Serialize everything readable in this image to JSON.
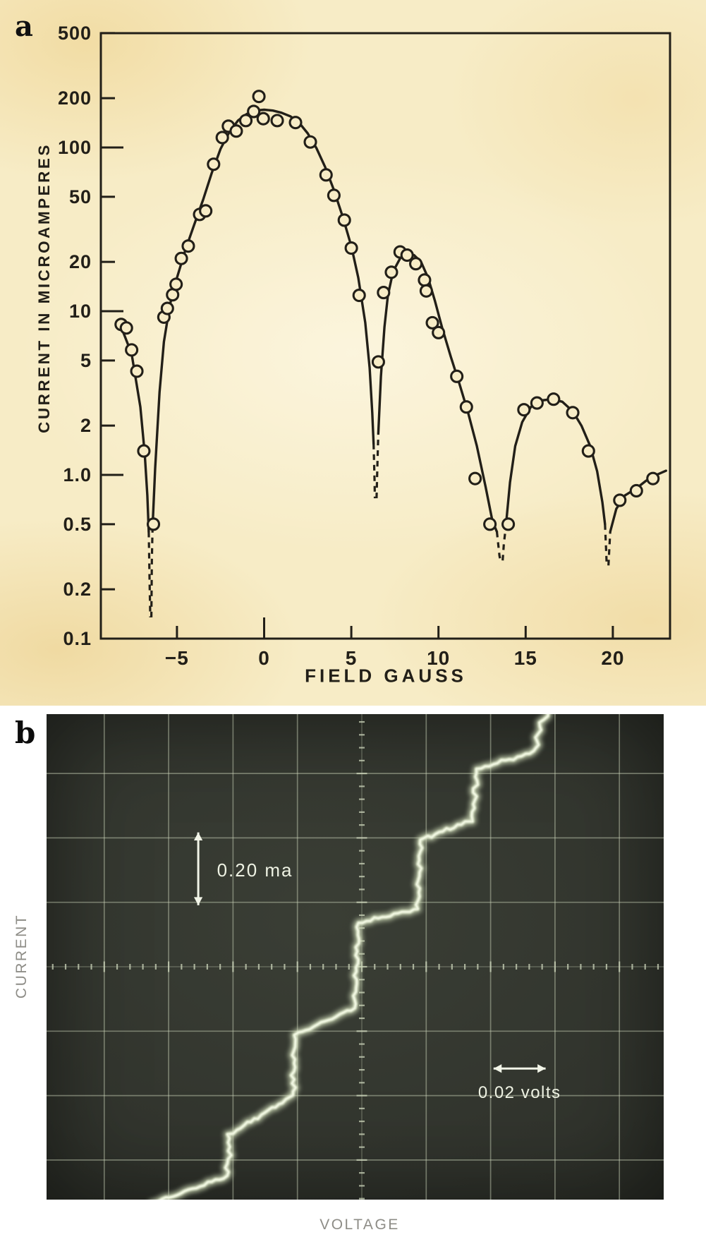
{
  "figure": {
    "panel_a_letter": "a",
    "panel_b_letter": "b"
  },
  "panel_a": {
    "y_axis_label": "CURRENT IN MICROAMPERES",
    "x_axis_label": "FIELD GAUSS",
    "y_tick_labels": [
      "500",
      "200",
      "100",
      "50",
      "20",
      "10",
      "5",
      "2",
      "1.0",
      "0.5",
      "0.2",
      "0.1"
    ],
    "x_tick_labels": [
      "−5",
      "0",
      "5",
      "10",
      "15",
      "20"
    ],
    "ink_color": "#221f18",
    "paper_color": "#f7ecc6"
  },
  "panel_b": {
    "y_axis_label": "CURRENT",
    "x_axis_label": "VOLTAGE",
    "current_scale_label": "0.20 ma",
    "voltage_scale_label": "0.02 volts",
    "screen_color": "#31342d",
    "grid_color": "#cdd6bb",
    "trace_color": "#eef4df",
    "annotation_color": "#eef2e3"
  },
  "chart_data": [
    {
      "type": "scatter",
      "panel": "a",
      "xlabel": "FIELD GAUSS",
      "ylabel": "CURRENT IN MICROAMPERES",
      "y_scale": "log",
      "xlim": [
        -9.35,
        23.35
      ],
      "ylim": [
        0.1,
        500
      ],
      "x_ticks": [
        -5,
        0,
        5,
        10,
        15,
        20
      ],
      "y_ticks": [
        500,
        200,
        100,
        50,
        20,
        10,
        5,
        2,
        1.0,
        0.5,
        0.2,
        0.1
      ],
      "grid": false,
      "points": [
        [
          -8.2,
          8.3
        ],
        [
          -7.9,
          7.9
        ],
        [
          -7.6,
          5.8
        ],
        [
          -7.3,
          4.3
        ],
        [
          -6.9,
          1.4
        ],
        [
          -6.35,
          0.5
        ],
        [
          -5.75,
          9.2
        ],
        [
          -5.55,
          10.4
        ],
        [
          -5.25,
          12.6
        ],
        [
          -5.05,
          14.6
        ],
        [
          -4.75,
          21
        ],
        [
          -4.35,
          25
        ],
        [
          -3.7,
          39
        ],
        [
          -3.35,
          41
        ],
        [
          -2.9,
          79
        ],
        [
          -2.4,
          115
        ],
        [
          -2.05,
          135
        ],
        [
          -1.6,
          126
        ],
        [
          -1.05,
          146
        ],
        [
          -0.6,
          166
        ],
        [
          -0.3,
          205
        ],
        [
          -0.05,
          150
        ],
        [
          0.75,
          146
        ],
        [
          1.8,
          142
        ],
        [
          2.65,
          108
        ],
        [
          3.55,
          68
        ],
        [
          4.0,
          51
        ],
        [
          4.6,
          36
        ],
        [
          5.0,
          24.3
        ],
        [
          5.45,
          12.5
        ],
        [
          6.55,
          4.9
        ],
        [
          6.85,
          13
        ],
        [
          7.3,
          17.3
        ],
        [
          7.8,
          23
        ],
        [
          8.2,
          22
        ],
        [
          8.7,
          19.5
        ],
        [
          9.2,
          15.5
        ],
        [
          9.3,
          13.3
        ],
        [
          9.65,
          8.5
        ],
        [
          10.0,
          7.4
        ],
        [
          11.05,
          4.0
        ],
        [
          11.6,
          2.6
        ],
        [
          12.1,
          0.95
        ],
        [
          12.95,
          0.5
        ],
        [
          14.0,
          0.5
        ],
        [
          14.9,
          2.5
        ],
        [
          15.65,
          2.75
        ],
        [
          16.6,
          2.9
        ],
        [
          17.7,
          2.4
        ],
        [
          18.6,
          1.4
        ],
        [
          20.4,
          0.7
        ],
        [
          21.35,
          0.8
        ],
        [
          22.3,
          0.95
        ]
      ],
      "curve_zeros": [
        -6.5,
        6.4,
        13.6,
        19.6
      ],
      "curve_peaks": [
        [
          0.0,
          170
        ],
        [
          8.1,
          22.5
        ],
        [
          16.5,
          2.9
        ]
      ],
      "curve_solid": [
        [
          [
            -8.35,
            8.8
          ],
          [
            -7.6,
            5.5
          ],
          [
            -7.1,
            2.6
          ],
          [
            -6.85,
            1.35
          ],
          [
            -6.7,
            0.75
          ],
          [
            -6.62,
            0.45
          ]
        ],
        [
          [
            -6.4,
            0.48
          ],
          [
            -6.25,
            1.1
          ],
          [
            -6.0,
            3.2
          ],
          [
            -5.75,
            6.5
          ],
          [
            -5.4,
            11
          ],
          [
            -5.0,
            16
          ],
          [
            -4.5,
            24
          ],
          [
            -4.0,
            34
          ],
          [
            -3.5,
            48
          ],
          [
            -3.0,
            70
          ],
          [
            -2.5,
            98
          ],
          [
            -2.0,
            124
          ],
          [
            -1.5,
            146
          ],
          [
            -1.0,
            160
          ],
          [
            -0.5,
            168
          ],
          [
            0.0,
            170
          ],
          [
            0.5,
            168
          ],
          [
            1.0,
            163
          ],
          [
            1.5,
            155
          ],
          [
            2.0,
            142
          ],
          [
            2.5,
            122
          ],
          [
            3.0,
            99
          ],
          [
            3.5,
            76
          ],
          [
            4.0,
            55
          ],
          [
            4.5,
            38
          ],
          [
            5.0,
            25
          ],
          [
            5.4,
            16
          ],
          [
            5.8,
            8.5
          ],
          [
            6.05,
            4.5
          ],
          [
            6.2,
            2.4
          ],
          [
            6.28,
            1.55
          ]
        ],
        [
          [
            6.55,
            1.8
          ],
          [
            6.7,
            4.0
          ],
          [
            6.9,
            8.0
          ],
          [
            7.1,
            12.5
          ],
          [
            7.4,
            17.5
          ],
          [
            7.8,
            21
          ],
          [
            8.1,
            22.5
          ],
          [
            8.6,
            22
          ],
          [
            9.0,
            20
          ],
          [
            9.4,
            16
          ],
          [
            9.8,
            11.5
          ],
          [
            10.2,
            8.0
          ],
          [
            10.7,
            5.3
          ],
          [
            11.2,
            3.6
          ],
          [
            11.7,
            2.4
          ],
          [
            12.2,
            1.5
          ],
          [
            12.7,
            0.85
          ],
          [
            13.1,
            0.52
          ],
          [
            13.35,
            0.45
          ]
        ],
        [
          [
            13.85,
            0.47
          ],
          [
            14.1,
            0.9
          ],
          [
            14.4,
            1.5
          ],
          [
            14.8,
            2.1
          ],
          [
            15.3,
            2.6
          ],
          [
            15.9,
            2.85
          ],
          [
            16.5,
            2.9
          ],
          [
            17.1,
            2.8
          ],
          [
            17.7,
            2.45
          ],
          [
            18.2,
            2.0
          ],
          [
            18.7,
            1.5
          ],
          [
            19.1,
            1.05
          ],
          [
            19.4,
            0.68
          ],
          [
            19.55,
            0.5
          ]
        ],
        [
          [
            19.85,
            0.45
          ],
          [
            20.2,
            0.62
          ],
          [
            20.7,
            0.75
          ],
          [
            21.3,
            0.82
          ],
          [
            21.9,
            0.92
          ],
          [
            22.5,
            1.0
          ],
          [
            23.05,
            1.06
          ]
        ]
      ],
      "curve_dashed": [
        [
          [
            -6.62,
            0.45
          ],
          [
            -6.56,
            0.2
          ],
          [
            -6.53,
            0.135
          ]
        ],
        [
          [
            -6.47,
            0.135
          ],
          [
            -6.44,
            0.3
          ],
          [
            -6.4,
            0.48
          ]
        ],
        [
          [
            6.28,
            1.55
          ],
          [
            6.33,
            0.95
          ],
          [
            6.35,
            0.72
          ]
        ],
        [
          [
            6.45,
            0.72
          ],
          [
            6.5,
            1.2
          ],
          [
            6.55,
            1.8
          ]
        ],
        [
          [
            13.35,
            0.45
          ],
          [
            13.5,
            0.32
          ],
          [
            13.55,
            0.3
          ]
        ],
        [
          [
            13.68,
            0.3
          ],
          [
            13.75,
            0.38
          ],
          [
            13.85,
            0.47
          ]
        ],
        [
          [
            19.55,
            0.5
          ],
          [
            19.62,
            0.34
          ],
          [
            19.65,
            0.28
          ]
        ],
        [
          [
            19.75,
            0.28
          ],
          [
            19.8,
            0.36
          ],
          [
            19.85,
            0.45
          ]
        ]
      ]
    },
    {
      "type": "line",
      "panel": "b",
      "xlabel": "VOLTAGE",
      "ylabel": "CURRENT",
      "x_scale_per_division": "0.02 volts",
      "y_scale_per_division": "0.20 ma",
      "step_spacing_divisions": 1.0,
      "grid_divisions_x": [
        -4,
        -3,
        -2,
        -1,
        0,
        1,
        2,
        3,
        4
      ],
      "grid_divisions_y": [
        -3,
        -2,
        -1,
        0,
        1,
        2,
        3
      ],
      "trace_divisions": [
        [
          -3.26,
          -3.68
        ],
        [
          -2.99,
          -3.58
        ],
        [
          -2.09,
          -3.25
        ],
        [
          -2.05,
          -2.6
        ],
        [
          -1.07,
          -2.0
        ],
        [
          -1.04,
          -1.06
        ],
        [
          -0.11,
          -0.64
        ],
        [
          -0.05,
          0.68
        ],
        [
          0.87,
          0.9
        ],
        [
          0.91,
          1.97
        ],
        [
          1.72,
          2.28
        ],
        [
          1.79,
          3.07
        ],
        [
          2.67,
          3.33
        ],
        [
          2.79,
          3.79
        ],
        [
          2.92,
          3.99
        ]
      ],
      "current_arrow_span_divisions": {
        "x": -2.54,
        "y_from": 1.02,
        "y_to": 2.02
      },
      "voltage_arrow_span_divisions": {
        "y": -1.58,
        "x_from": 1.98,
        "x_to": 2.92
      },
      "current_label_pos_divisions": {
        "x": -2.25,
        "y": 1.5
      },
      "voltage_label_pos_divisions": {
        "x": 2.45,
        "y": -1.95
      }
    }
  ]
}
